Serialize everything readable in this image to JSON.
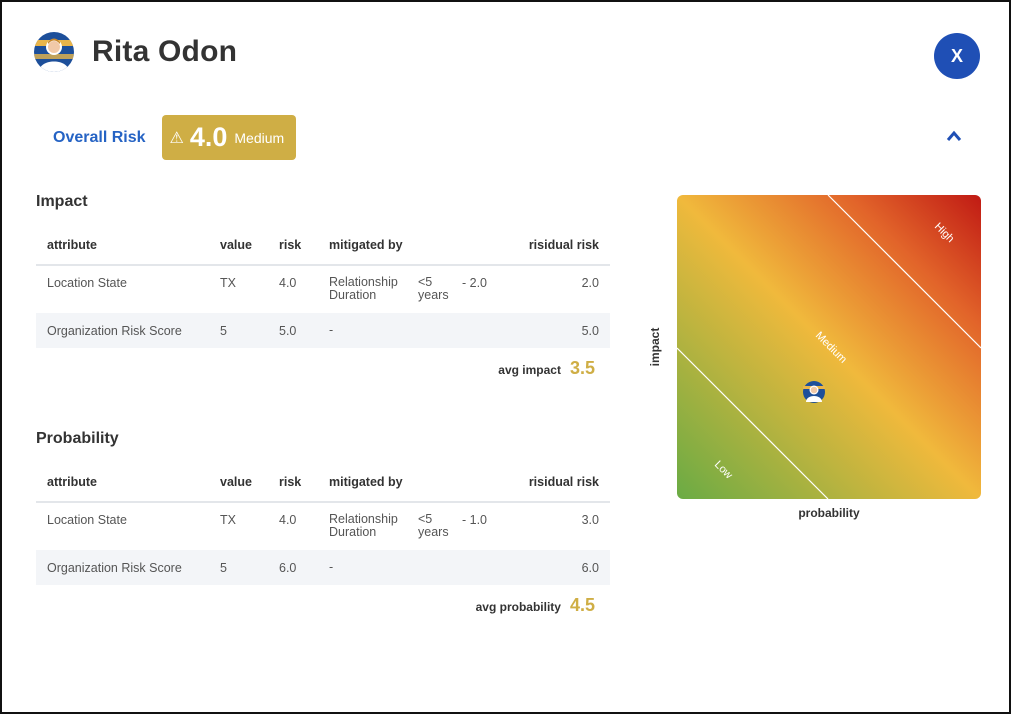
{
  "person": {
    "name": "Rita Odon",
    "avatar_icon": "user-avatar-icon"
  },
  "close_label": "X",
  "overall": {
    "label": "Overall Risk",
    "score": "4.0",
    "level": "Medium",
    "badge_color": "#cfae45",
    "warn_icon": "⚠"
  },
  "collapse_icon": "chevron-up-icon",
  "columns": {
    "attribute": "attribute",
    "value": "value",
    "risk": "risk",
    "mitigated_by": "mitigated by",
    "residual_risk": "risidual risk"
  },
  "impact": {
    "title": "Impact",
    "rows": [
      {
        "attribute": "Location State",
        "value": "TX",
        "risk": "4.0",
        "mitigated_by": "Relationship Duration",
        "duration": "<5 years",
        "delta": "- 2.0",
        "residual": "2.0"
      },
      {
        "attribute": "Organization Risk Score",
        "value": "5",
        "risk": "5.0",
        "mitigated_by": "-",
        "duration": "",
        "delta": "",
        "residual": "5.0"
      }
    ],
    "avg_label": "avg impact",
    "avg_value": "3.5"
  },
  "probability": {
    "title": "Probability",
    "rows": [
      {
        "attribute": "Location State",
        "value": "TX",
        "risk": "4.0",
        "mitigated_by": "Relationship Duration",
        "duration": "<5 years",
        "delta": "- 1.0",
        "residual": "3.0"
      },
      {
        "attribute": "Organization Risk Score",
        "value": "5",
        "risk": "6.0",
        "mitigated_by": "-",
        "duration": "",
        "delta": "",
        "residual": "6.0"
      }
    ],
    "avg_label": "avg probability",
    "avg_value": "4.5"
  },
  "matrix": {
    "x_axis": "probability",
    "y_axis": "impact",
    "zones": {
      "low": "Low",
      "medium": "Medium",
      "high": "High"
    },
    "colors": {
      "green": "#6aab44",
      "yellow": "#f0b93c",
      "orange": "#e2652a",
      "red": "#c01a14"
    }
  }
}
